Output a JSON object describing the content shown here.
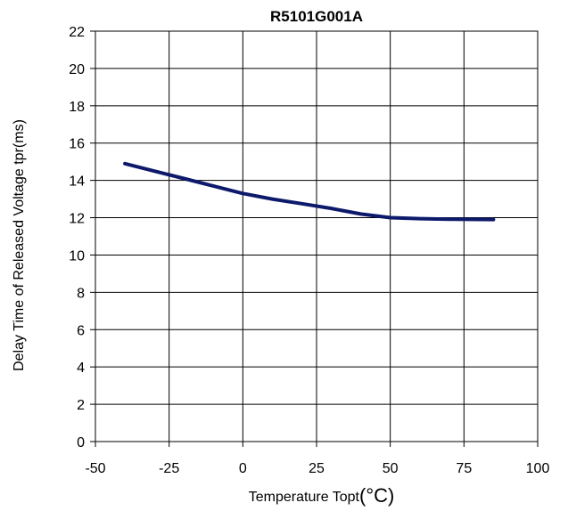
{
  "chart_data": {
    "type": "line",
    "title": "R5101G001A",
    "xlabel": "Temperature Topt",
    "xunit": "(°C)",
    "ylabel": "Delay Time of Released Voltage tpr(ms)",
    "xlim": [
      -50,
      100
    ],
    "ylim": [
      0,
      22
    ],
    "xticks": [
      -50,
      -25,
      0,
      25,
      50,
      75,
      100
    ],
    "yticks": [
      0,
      2,
      4,
      6,
      8,
      10,
      12,
      14,
      16,
      18,
      20,
      22
    ],
    "grid": true,
    "series": [
      {
        "color": "#0d1a6b",
        "x": [
          -40,
          -30,
          -20,
          -10,
          0,
          10,
          20,
          30,
          40,
          50,
          60,
          70,
          85
        ],
        "y": [
          14.9,
          14.5,
          14.1,
          13.7,
          13.3,
          13.0,
          12.75,
          12.5,
          12.2,
          12.0,
          11.95,
          11.92,
          11.9
        ]
      }
    ]
  }
}
